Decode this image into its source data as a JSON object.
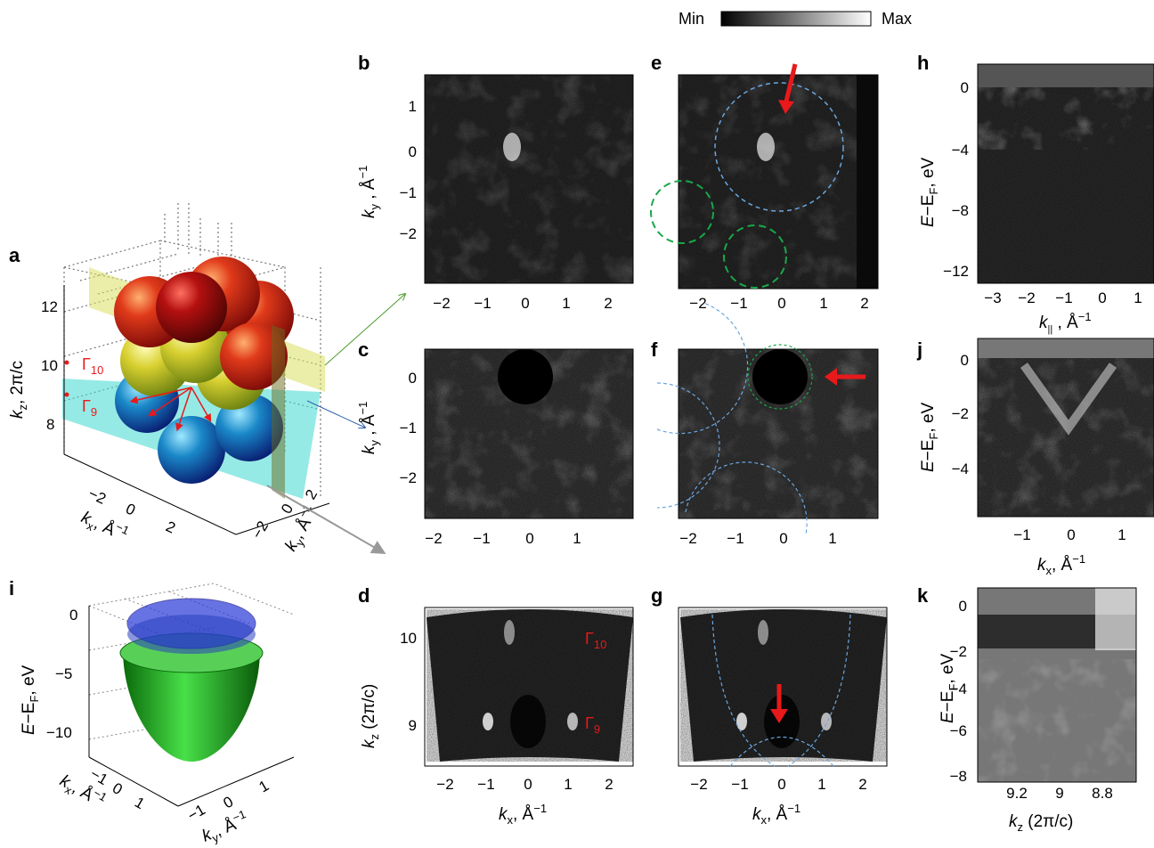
{
  "colorbar": {
    "min_label": "Min",
    "max_label": "Max"
  },
  "colors": {
    "red_arrow": "#e8191b",
    "blue_dash": "#6aa6e0",
    "green_dash": "#19a84a",
    "sphere_red": "#c8201a",
    "sphere_yellow": "#d8d84a",
    "sphere_blue": "#1870b8",
    "paraboloid_green": "#22b022",
    "disk_blue": "#2838d8"
  },
  "panels": {
    "a": {
      "label": "a",
      "kz_axis": {
        "k": "k",
        "sub": "z",
        "rest": ", 2π/c",
        "ticks": [
          "12",
          "10",
          "8"
        ]
      },
      "kx_axis": {
        "k": "k",
        "sub": "x",
        "rest": ", Å",
        "sup": "−1",
        "ticks": [
          "−2",
          "0",
          "2"
        ]
      },
      "ky_axis": {
        "k": "k",
        "sub": "y",
        "rest": ", Å",
        "sup": "−1",
        "ticks": [
          "2",
          "0",
          "−2"
        ]
      },
      "gamma10": {
        "g": "Γ",
        "sub": "10"
      },
      "gamma9": {
        "g": "Γ",
        "sub": "9"
      }
    },
    "b": {
      "label": "b",
      "xticks": [
        "−2",
        "−1",
        "0",
        "1",
        "2"
      ],
      "yticks": [
        "1",
        "0",
        "−1",
        "−2"
      ],
      "ylabel": {
        "k": "k",
        "sub": "y",
        "rest": " , Å",
        "sup": "−1"
      }
    },
    "c": {
      "label": "c",
      "xticks": [
        "−2",
        "−1",
        "0",
        "1"
      ],
      "yticks": [
        "0",
        "−1",
        "−2"
      ],
      "ylabel": {
        "k": "k",
        "sub": "y",
        "rest": " , Å",
        "sup": "−1"
      }
    },
    "d": {
      "label": "d",
      "xticks": [
        "−2",
        "−1",
        "0",
        "1",
        "2"
      ],
      "yticks": [
        "10",
        "9"
      ],
      "ylabel": {
        "k": "k",
        "sub": "z",
        "rest": " (2π/c)"
      },
      "xlabel": {
        "k": "k",
        "sub": "x",
        "rest": ", Å",
        "sup": "−1"
      },
      "gamma10": {
        "g": "Γ",
        "sub": "10"
      },
      "gamma9": {
        "g": "Γ",
        "sub": "9"
      }
    },
    "e": {
      "label": "e",
      "xticks": [
        "−2",
        "−1",
        "0",
        "1",
        "2"
      ]
    },
    "f": {
      "label": "f",
      "xticks": [
        "−2",
        "−1",
        "0",
        "1"
      ]
    },
    "g": {
      "label": "g",
      "xticks": [
        "−2",
        "−1",
        "0",
        "1",
        "2"
      ],
      "xlabel": {
        "k": "k",
        "sub": "x",
        "rest": ", Å",
        "sup": "−1"
      }
    },
    "h": {
      "label": "h",
      "xticks": [
        "−3",
        "−2",
        "−1",
        "0",
        "1"
      ],
      "yticks": [
        "0",
        "−4",
        "−8",
        "−12"
      ],
      "ylabel": {
        "pre": "E",
        "mid": "−E",
        "sub": "F",
        "rest": ", eV"
      },
      "xlabel": {
        "k": "k",
        "sub": "||",
        "rest": " , Å",
        "sup": "−1"
      }
    },
    "j": {
      "label": "j",
      "xticks": [
        "−1",
        "0",
        "1"
      ],
      "yticks": [
        "0",
        "−2",
        "−4"
      ],
      "ylabel": {
        "pre": "E",
        "mid": "−E",
        "sub": "F",
        "rest": ", eV"
      },
      "xlabel": {
        "k": "k",
        "sub": "x",
        "rest": ", Å",
        "sup": "−1"
      }
    },
    "k": {
      "label": "k",
      "xticks": [
        "9.2",
        "9",
        "8.8"
      ],
      "yticks": [
        "0",
        "−2",
        "−4",
        "−6",
        "−8"
      ],
      "ylabel": {
        "pre": "E",
        "mid": "−E",
        "sub": "F",
        "rest": ", eV"
      },
      "xlabel": {
        "k": "k",
        "sub": "z",
        "rest": " (2π/c)"
      }
    },
    "i": {
      "label": "i",
      "zticks": [
        "0",
        "−5",
        "−10"
      ],
      "zlabel": {
        "pre": "E",
        "mid": "−E",
        "sub": "F",
        "rest": ", eV"
      },
      "kx_axis": {
        "k": "k",
        "sub": "x",
        "rest": ", Å",
        "sup": "−1",
        "ticks": [
          "−1",
          "0",
          "1"
        ]
      },
      "ky_axis": {
        "k": "k",
        "sub": "y",
        "rest": ", Å",
        "sup": "−1",
        "ticks": [
          "−1",
          "0",
          "1"
        ]
      }
    }
  }
}
